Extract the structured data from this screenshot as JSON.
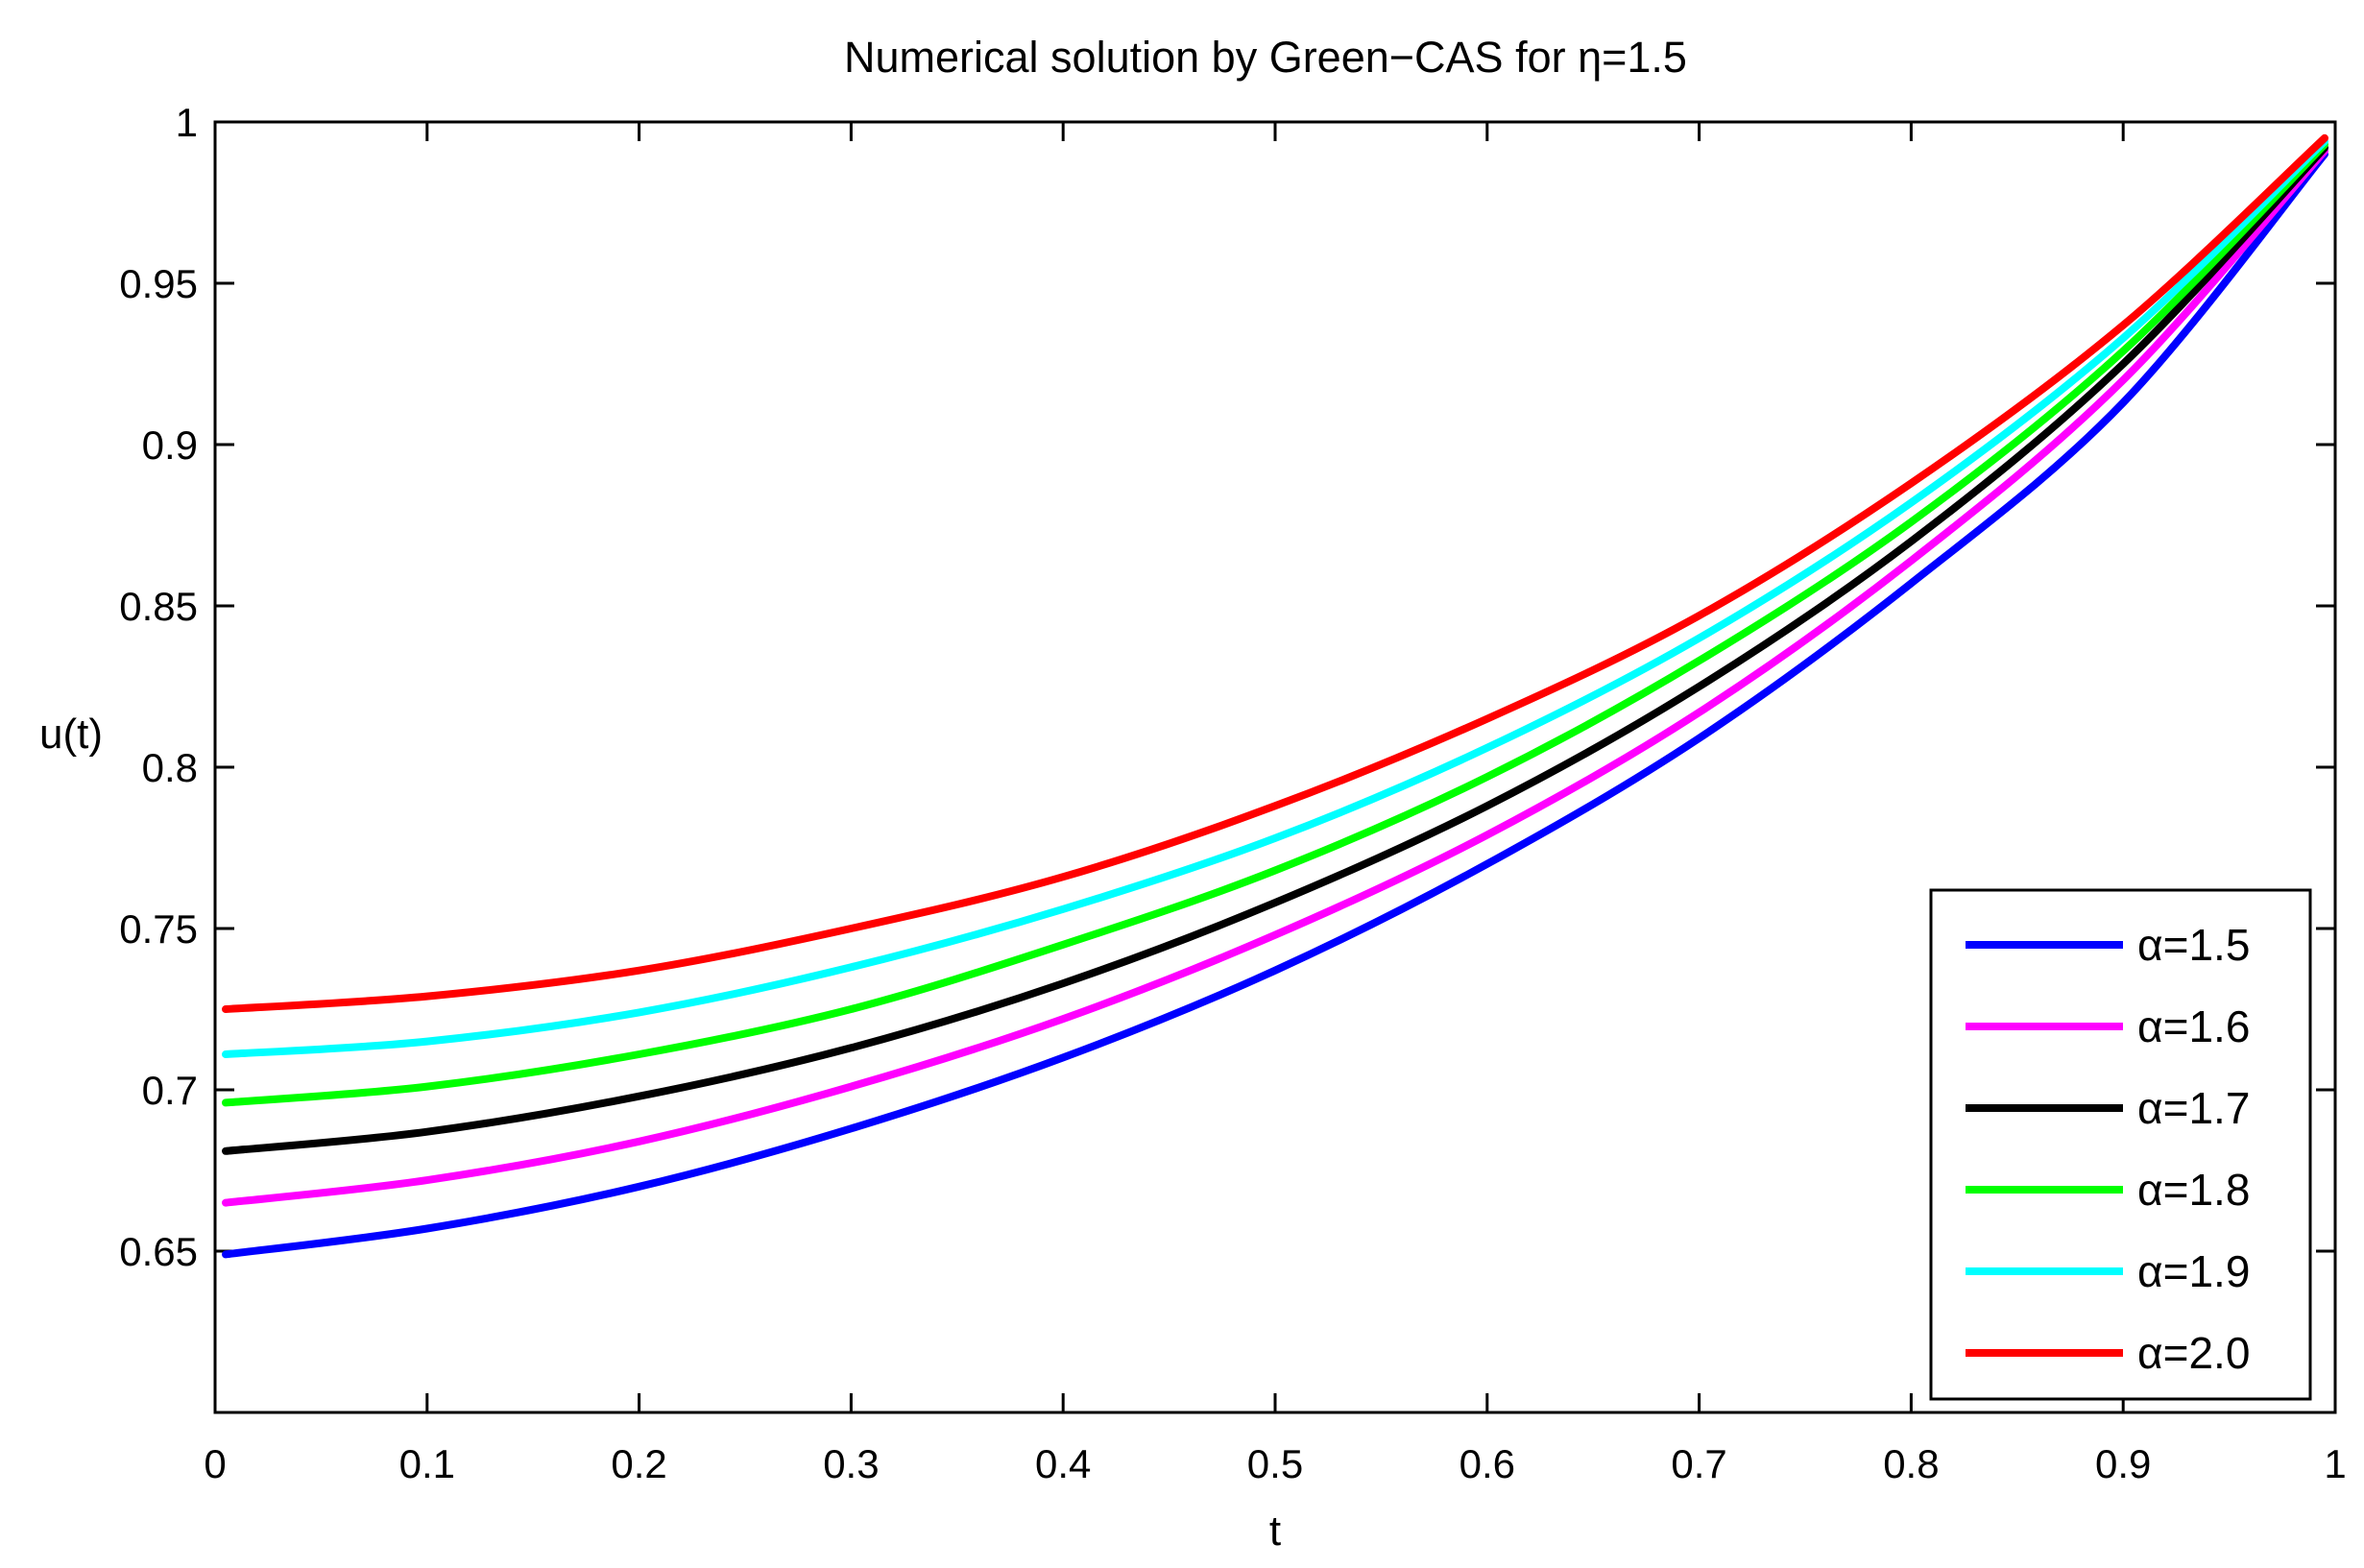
{
  "chart_data": {
    "type": "line",
    "title": "Numerical solution by Green−CAS for η=1.5",
    "xlabel": "t",
    "ylabel": "u(t)",
    "xlim": [
      0,
      1
    ],
    "ylim": [
      0.6,
      1.0
    ],
    "xticks": [
      0,
      0.1,
      0.2,
      0.3,
      0.4,
      0.5,
      0.6,
      0.7,
      0.8,
      0.9,
      1
    ],
    "xtick_labels": [
      "0",
      "0.1",
      "0.2",
      "0.3",
      "0.4",
      "0.5",
      "0.6",
      "0.7",
      "0.8",
      "0.9",
      "1"
    ],
    "yticks": [
      0.65,
      0.7,
      0.75,
      0.8,
      0.85,
      0.9,
      0.95,
      1
    ],
    "ytick_labels": [
      "0.65",
      "0.7",
      "0.75",
      "0.8",
      "0.85",
      "0.9",
      "0.95",
      "1"
    ],
    "grid": false,
    "legend_position": "bottom-right",
    "x": [
      0.005,
      0.1,
      0.2,
      0.3,
      0.4,
      0.5,
      0.6,
      0.7,
      0.8,
      0.9,
      0.995
    ],
    "series": [
      {
        "name": "α=1.5",
        "color": "#0000ff",
        "values": [
          0.649,
          0.657,
          0.67,
          0.688,
          0.71,
          0.737,
          0.77,
          0.809,
          0.857,
          0.913,
          0.99
        ]
      },
      {
        "name": "α=1.6",
        "color": "#ff00ff",
        "values": [
          0.665,
          0.672,
          0.684,
          0.701,
          0.722,
          0.748,
          0.779,
          0.817,
          0.864,
          0.92,
          0.991
        ]
      },
      {
        "name": "α=1.7",
        "color": "#000000",
        "values": [
          0.681,
          0.687,
          0.698,
          0.713,
          0.733,
          0.758,
          0.788,
          0.825,
          0.87,
          0.925,
          0.992
        ]
      },
      {
        "name": "α=1.8",
        "color": "#00ff00",
        "values": [
          0.696,
          0.701,
          0.711,
          0.725,
          0.745,
          0.768,
          0.797,
          0.833,
          0.876,
          0.929,
          0.993
        ]
      },
      {
        "name": "α=1.9",
        "color": "#00ffff",
        "values": [
          0.711,
          0.715,
          0.724,
          0.738,
          0.756,
          0.778,
          0.806,
          0.84,
          0.882,
          0.933,
          0.994
        ]
      },
      {
        "name": "α=2.0",
        "color": "#ff0000",
        "values": [
          0.725,
          0.729,
          0.737,
          0.75,
          0.766,
          0.788,
          0.815,
          0.847,
          0.888,
          0.937,
          0.995
        ]
      }
    ]
  }
}
